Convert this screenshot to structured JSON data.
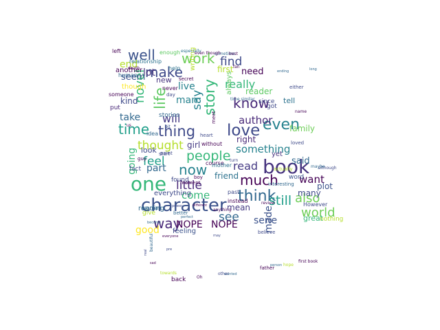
{
  "cloud": {
    "words": [
      {
        "text": "book",
        "color": "#46337e"
      },
      {
        "text": "one",
        "color": "#35b779"
      },
      {
        "text": "character",
        "color": "#3b528b"
      },
      {
        "text": "love",
        "color": "#3e4989"
      },
      {
        "text": "think",
        "color": "#31688e"
      },
      {
        "text": "even",
        "color": "#26828e"
      },
      {
        "text": "much",
        "color": "#440154"
      },
      {
        "text": "story",
        "color": "#35b779"
      },
      {
        "text": "time",
        "color": "#1f9e89"
      },
      {
        "text": "thing",
        "color": "#3e4989"
      },
      {
        "text": "life",
        "color": "#5ec962"
      },
      {
        "text": "way",
        "color": "#482878"
      },
      {
        "text": "now",
        "color": "#26828e"
      },
      {
        "text": "know",
        "color": "#482878"
      },
      {
        "text": "well",
        "color": "#3b528b"
      },
      {
        "text": "work",
        "color": "#6ece58"
      },
      {
        "text": "make",
        "color": "#3e4989"
      },
      {
        "text": "people",
        "color": "#35b779"
      },
      {
        "text": "still",
        "color": "#1f9e89"
      },
      {
        "text": "also",
        "color": "#6ece58"
      },
      {
        "text": "world",
        "color": "#6ece58"
      },
      {
        "text": "see",
        "color": "#31688e"
      },
      {
        "text": "say",
        "color": "#26828e"
      },
      {
        "text": "read",
        "color": "#443983"
      },
      {
        "text": "little",
        "color": "#482878"
      },
      {
        "text": "thought",
        "color": "#b5de2b"
      },
      {
        "text": "feel",
        "color": "#1f9e89"
      },
      {
        "text": "novel",
        "color": "#35b779"
      },
      {
        "text": "find",
        "color": "#3e4989"
      },
      {
        "text": "really",
        "color": "#35b779"
      },
      {
        "text": "author",
        "color": "#482878"
      },
      {
        "text": "something",
        "color": "#26828e"
      },
      {
        "text": "come",
        "color": "#35b779"
      },
      {
        "text": "want",
        "color": "#440154"
      },
      {
        "text": "part",
        "color": "#31688e"
      },
      {
        "text": "will",
        "color": "#443983"
      },
      {
        "text": "going",
        "color": "#35b779"
      },
      {
        "text": "made",
        "color": "#3b528b"
      },
      {
        "text": "NOPE",
        "color": "#440154"
      },
      {
        "text": "NOPE",
        "color": "#440154"
      },
      {
        "text": "serie",
        "color": "#3b528b"
      },
      {
        "text": "good",
        "color": "#fde725"
      },
      {
        "text": "take",
        "color": "#31688e"
      },
      {
        "text": "man",
        "color": "#26828e"
      },
      {
        "text": "live",
        "color": "#26828e"
      },
      {
        "text": "lot",
        "color": "#46337e"
      },
      {
        "text": "end",
        "color": "#b5de2b"
      },
      {
        "text": "seem",
        "color": "#3b528b"
      },
      {
        "text": "need",
        "color": "#440154"
      },
      {
        "text": "said",
        "color": "#31688e"
      },
      {
        "text": "mean",
        "color": "#443983"
      },
      {
        "text": "friend",
        "color": "#2c728e"
      },
      {
        "text": "girl",
        "color": "#443983"
      },
      {
        "text": "right",
        "color": "#482878"
      },
      {
        "text": "family",
        "color": "#6ece58"
      },
      {
        "text": "reader",
        "color": "#5ec962"
      },
      {
        "text": "first",
        "color": "#b5de2b"
      },
      {
        "text": "many",
        "color": "#3e4989"
      },
      {
        "text": "plot",
        "color": "#3b528b"
      },
      {
        "text": "kind",
        "color": "#3e4989"
      },
      {
        "text": "new",
        "color": "#46337e"
      },
      {
        "text": "tell",
        "color": "#2c728e"
      },
      {
        "text": "look",
        "color": "#3e4989"
      },
      {
        "text": "though",
        "color": "#fde725"
      },
      {
        "text": "writing",
        "color": "#b5de2b"
      },
      {
        "text": "another",
        "color": "#440154"
      },
      {
        "text": "feeling",
        "color": "#3b528b"
      },
      {
        "text": "everything",
        "color": "#3e4989"
      },
      {
        "text": "found",
        "color": "#3e4989"
      },
      {
        "text": "fact",
        "color": "#3e4989"
      },
      {
        "text": "reading",
        "color": "#31688e"
      },
      {
        "text": "relationship",
        "color": "#2c728e"
      },
      {
        "text": "enough",
        "color": "#5ec962"
      },
      {
        "text": "left",
        "color": "#440154"
      },
      {
        "text": "human",
        "color": "#31688e"
      },
      {
        "text": "got",
        "color": "#3e4989"
      },
      {
        "text": "since",
        "color": "#3e4989"
      },
      {
        "text": "always",
        "color": "#5ec962"
      },
      {
        "text": "yet",
        "color": "#46337e"
      },
      {
        "text": "back",
        "color": "#440154"
      },
      {
        "text": "word",
        "color": "#3b528b"
      },
      {
        "text": "stories",
        "color": "#31688e"
      },
      {
        "text": "never",
        "color": "#440154"
      },
      {
        "text": "help",
        "color": "#2c728e"
      },
      {
        "text": "course",
        "color": "#440154"
      },
      {
        "text": "without",
        "color": "#440154"
      },
      {
        "text": "mother",
        "color": "#2c728e"
      },
      {
        "text": "put",
        "color": "#482878"
      },
      {
        "text": "day",
        "color": "#3e4989"
      },
      {
        "text": "idea",
        "color": "#31688e"
      },
      {
        "text": "moment",
        "color": "#440154"
      },
      {
        "text": "However",
        "color": "#3e4989"
      },
      {
        "text": "great",
        "color": "#35b779"
      },
      {
        "text": "nothing",
        "color": "#b5de2b"
      },
      {
        "text": "someone",
        "color": "#440154"
      },
      {
        "text": "woman",
        "color": "#31688e"
      },
      {
        "text": "past",
        "color": "#3e4989"
      },
      {
        "text": "instead",
        "color": "#440154"
      },
      {
        "text": "especially",
        "color": "#2c728e"
      },
      {
        "text": "start",
        "color": "#3e4989"
      },
      {
        "text": "heart",
        "color": "#3e4989"
      },
      {
        "text": "point",
        "color": "#3e4989"
      },
      {
        "text": "give",
        "color": "#b5de2b"
      },
      {
        "text": "better",
        "color": "#31688e"
      },
      {
        "text": "father",
        "color": "#440154"
      },
      {
        "text": "first book",
        "color": "#440154"
      },
      {
        "text": "wanted",
        "color": "#31688e"
      },
      {
        "text": "believe",
        "color": "#3e4989"
      },
      {
        "text": "everyone",
        "color": "#440154"
      },
      {
        "text": "power",
        "color": "#3e4989"
      },
      {
        "text": "different",
        "color": "#440154"
      },
      {
        "text": "perfect",
        "color": "#31688e"
      },
      {
        "text": "secret",
        "color": "#440154"
      },
      {
        "text": "bit",
        "color": "#3b528b"
      },
      {
        "text": "sometime",
        "color": "#31688e"
      },
      {
        "text": "best",
        "color": "#440154"
      },
      {
        "text": "time similar",
        "color": "#31688e"
      },
      {
        "text": "interesting",
        "color": "#31688e"
      },
      {
        "text": "actually",
        "color": "#b5de2b"
      },
      {
        "text": "although",
        "color": "#3e4989"
      },
      {
        "text": "boy",
        "color": "#440154"
      },
      {
        "text": "guy",
        "color": "#440154"
      },
      {
        "text": "real",
        "color": "#3e4989"
      },
      {
        "text": "beautiful",
        "color": "#31688e"
      },
      {
        "text": "become",
        "color": "#31688e"
      },
      {
        "text": "meet",
        "color": "#440154"
      },
      {
        "text": "loved",
        "color": "#3e4989"
      },
      {
        "text": "maybe",
        "color": "#31688e"
      },
      {
        "text": "name",
        "color": "#440154"
      },
      {
        "text": "death",
        "color": "#440154"
      },
      {
        "text": "person",
        "color": "#31688e"
      },
      {
        "text": "hope",
        "color": "#b5de2b"
      },
      {
        "text": "review",
        "color": "#440154"
      },
      {
        "text": "turn",
        "color": "#3e4989"
      },
      {
        "text": "anything",
        "color": "#440154"
      },
      {
        "text": "towards",
        "color": "#b5de2b"
      },
      {
        "text": "Oh",
        "color": "#440154"
      },
      {
        "text": "other",
        "color": "#3e4989"
      },
      {
        "text": "long",
        "color": "#31688e"
      },
      {
        "text": "fan",
        "color": "#440154"
      },
      {
        "text": "may",
        "color": "#3e4989"
      },
      {
        "text": "even though",
        "color": "#440154"
      },
      {
        "text": "ending",
        "color": "#31688e"
      },
      {
        "text": "either",
        "color": "#3e4989"
      },
      {
        "text": "sad",
        "color": "#440154"
      },
      {
        "text": "pre",
        "color": "#3e4989"
      },
      {
        "text": "us",
        "color": "#440154"
      },
      {
        "text": "go",
        "color": "#440154"
      }
    ]
  }
}
